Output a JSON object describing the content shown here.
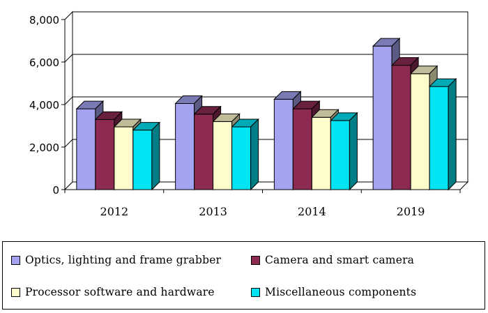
{
  "chart_data": {
    "type": "bar",
    "categories": [
      "2012",
      "2013",
      "2014",
      "2019"
    ],
    "series": [
      {
        "name": "Optics, lighting and frame grabber",
        "values": [
          3800,
          4050,
          4250,
          6750
        ],
        "color": "#a3a3f0"
      },
      {
        "name": "Camera and smart camera",
        "values": [
          3300,
          3550,
          3800,
          5850
        ],
        "color": "#8c2a52"
      },
      {
        "name": "Processor software and hardware",
        "values": [
          2950,
          3200,
          3400,
          5450
        ],
        "color": "#fffccc"
      },
      {
        "name": "Miscellaneous components",
        "values": [
          2800,
          2950,
          3250,
          4850
        ],
        "color": "#00e3f2"
      }
    ],
    "ylim": [
      0,
      8000
    ],
    "yticks": [
      "8,000",
      "6,000",
      "4,000",
      "2,000",
      "0"
    ],
    "ytick_values": [
      8000,
      6000,
      4000,
      2000,
      0
    ],
    "grid": true,
    "legend_position": "bottom",
    "style": "3d-clustered"
  }
}
